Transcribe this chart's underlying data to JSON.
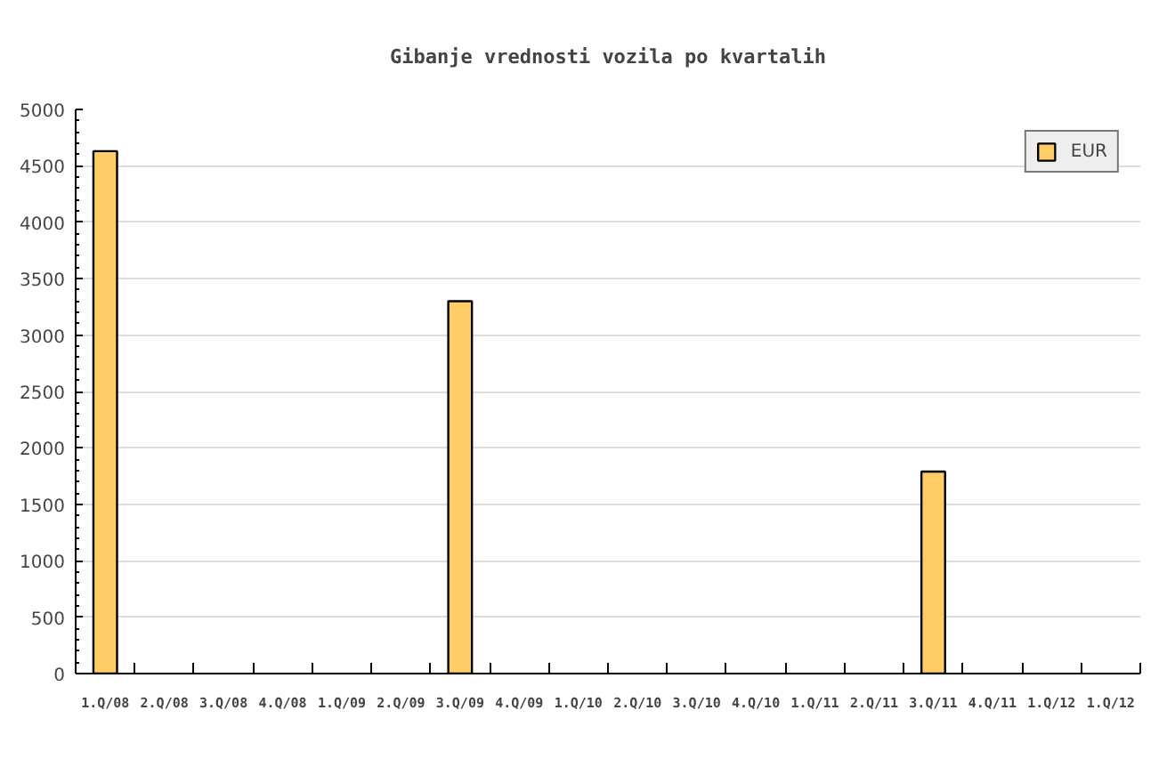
{
  "chart_data": {
    "type": "bar",
    "title": "Gibanje vrednosti vozila po kvartalih",
    "categories": [
      "1.Q/08",
      "2.Q/08",
      "3.Q/08",
      "4.Q/08",
      "1.Q/09",
      "2.Q/09",
      "3.Q/09",
      "4.Q/09",
      "1.Q/10",
      "2.Q/10",
      "3.Q/10",
      "4.Q/10",
      "1.Q/11",
      "2.Q/11",
      "3.Q/11",
      "4.Q/11",
      "1.Q/12",
      "1.Q/12"
    ],
    "series": [
      {
        "name": "EUR",
        "color": "#ffcc66",
        "values": [
          4630,
          null,
          null,
          null,
          null,
          null,
          3300,
          null,
          null,
          null,
          null,
          null,
          null,
          null,
          1790,
          null,
          null,
          null
        ]
      }
    ],
    "ylim": [
      0,
      5000
    ],
    "yticks": [
      0,
      500,
      1000,
      1500,
      2000,
      2500,
      3000,
      3500,
      4000,
      4500,
      5000
    ],
    "grid": "y",
    "legend": "top right"
  }
}
